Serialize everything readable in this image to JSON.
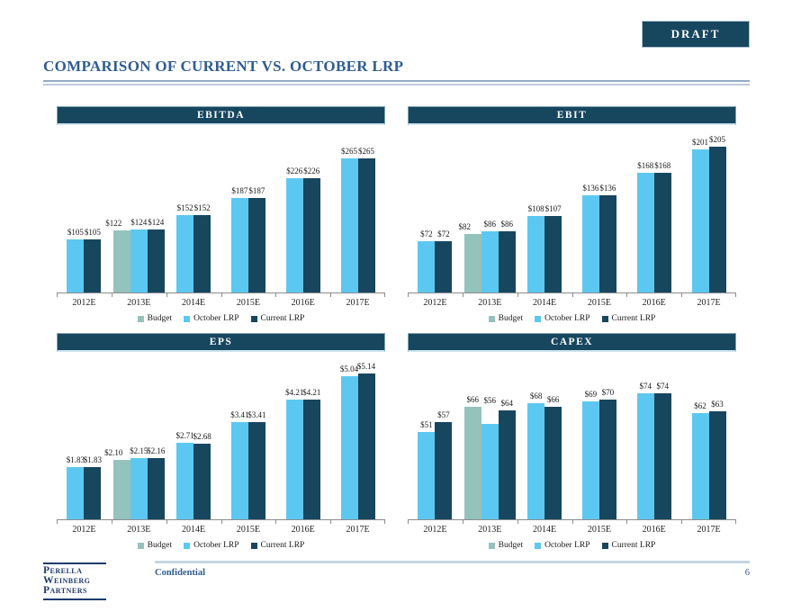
{
  "draft_label": "DRAFT",
  "page_title": "COMPARISON OF CURRENT VS. OCTOBER LRP",
  "footer": {
    "logo_lines": [
      "Perella",
      "Weinberg",
      "Partners"
    ],
    "confidential": "Confidential",
    "page_number": "6"
  },
  "colors": {
    "accent_navy": "#17465F",
    "title_blue": "#2F5D92",
    "series": {
      "Budget": "#94C2BD",
      "October LRP": "#5CC8F1",
      "Current LRP": "#17465F"
    }
  },
  "chart_data": [
    {
      "id": "ebitda",
      "type": "bar",
      "title": "EBITDA",
      "categories": [
        "2012E",
        "2013E",
        "2014E",
        "2015E",
        "2016E",
        "2017E"
      ],
      "series": [
        {
          "name": "Budget",
          "values": [
            null,
            122,
            null,
            null,
            null,
            null
          ],
          "labels": [
            null,
            "$122",
            null,
            null,
            null,
            null
          ]
        },
        {
          "name": "October LRP",
          "values": [
            105,
            124,
            152,
            187,
            226,
            265
          ],
          "labels": [
            "$105",
            "$124",
            "$152",
            "$187",
            "$226",
            "$265"
          ]
        },
        {
          "name": "Current LRP",
          "values": [
            105,
            124,
            152,
            187,
            226,
            265
          ],
          "labels": [
            "$105",
            "$124",
            "$152",
            "$187",
            "$226",
            "$265"
          ]
        }
      ],
      "ylim": [
        0,
        330
      ],
      "grid": false,
      "legend_position": "bottom"
    },
    {
      "id": "ebit",
      "type": "bar",
      "title": "EBIT",
      "categories": [
        "2012E",
        "2013E",
        "2014E",
        "2015E",
        "2016E",
        "2017E"
      ],
      "series": [
        {
          "name": "Budget",
          "values": [
            null,
            82,
            null,
            null,
            null,
            null
          ],
          "labels": [
            null,
            "$82",
            null,
            null,
            null,
            null
          ]
        },
        {
          "name": "October LRP",
          "values": [
            72,
            86,
            108,
            136,
            168,
            201
          ],
          "labels": [
            "$72",
            "$86",
            "$108",
            "$136",
            "$168",
            "$201"
          ]
        },
        {
          "name": "Current LRP",
          "values": [
            72,
            86,
            107,
            136,
            168,
            205
          ],
          "labels": [
            "$72",
            "$86",
            "$107",
            "$136",
            "$168",
            "$205"
          ]
        }
      ],
      "ylim": [
        0,
        235
      ],
      "grid": false,
      "legend_position": "bottom"
    },
    {
      "id": "eps",
      "type": "bar",
      "title": "EPS",
      "categories": [
        "2012E",
        "2013E",
        "2014E",
        "2015E",
        "2016E",
        "2017E"
      ],
      "series": [
        {
          "name": "Budget",
          "values": [
            null,
            2.1,
            null,
            null,
            null,
            null
          ],
          "labels": [
            null,
            "$2.10",
            null,
            null,
            null,
            null
          ]
        },
        {
          "name": "October LRP",
          "values": [
            1.83,
            2.15,
            2.71,
            3.41,
            4.21,
            5.04
          ],
          "labels": [
            "$1.83",
            "$2.15",
            "$2.71",
            "$3.41",
            "$4.21",
            "$5.04"
          ]
        },
        {
          "name": "Current LRP",
          "values": [
            1.83,
            2.16,
            2.68,
            3.41,
            4.21,
            5.14
          ],
          "labels": [
            "$1.83",
            "$2.16",
            "$2.68",
            "$3.41",
            "$4.21",
            "$5.14"
          ]
        }
      ],
      "ylim": [
        0,
        5.9
      ],
      "grid": false,
      "legend_position": "bottom"
    },
    {
      "id": "capex",
      "type": "bar",
      "title": "CAPEX",
      "categories": [
        "2012E",
        "2013E",
        "2014E",
        "2015E",
        "2016E",
        "2017E"
      ],
      "series": [
        {
          "name": "Budget",
          "values": [
            null,
            66,
            null,
            null,
            null,
            null
          ],
          "labels": [
            null,
            "$66",
            null,
            null,
            null,
            null
          ]
        },
        {
          "name": "October LRP",
          "values": [
            51,
            56,
            68,
            69,
            74,
            62
          ],
          "labels": [
            "$51",
            "$56",
            "$68",
            "$69",
            "$74",
            "$62"
          ]
        },
        {
          "name": "Current LRP",
          "values": [
            57,
            64,
            66,
            70,
            74,
            63
          ],
          "labels": [
            "$57",
            "$64",
            "$66",
            "$70",
            "$74",
            "$63"
          ]
        }
      ],
      "ylim": [
        0,
        98
      ],
      "grid": false,
      "legend_position": "bottom"
    }
  ]
}
